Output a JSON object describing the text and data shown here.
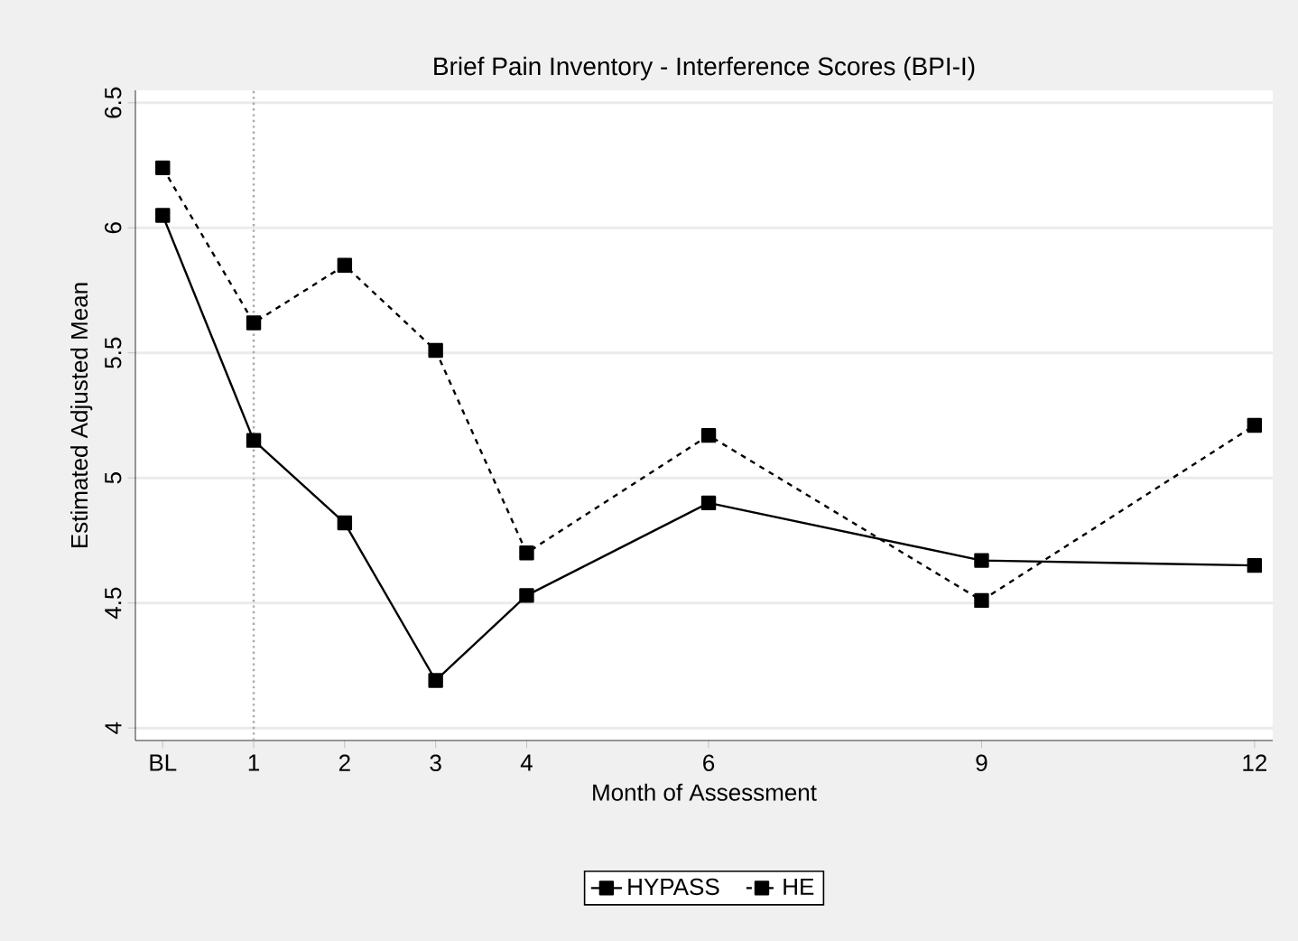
{
  "chart_data": {
    "type": "line",
    "title": "Brief Pain Inventory - Interference Scores (BPI-I)",
    "xlabel": "Month of Assessment",
    "ylabel": "Estimated Adjusted Mean",
    "x": [
      0,
      1,
      2,
      3,
      4,
      6,
      9,
      12
    ],
    "series": [
      {
        "name": "HYPASS",
        "color": "#000000",
        "line_style": "solid",
        "values": [
          6.05,
          5.15,
          4.82,
          4.19,
          4.53,
          4.9,
          4.67,
          4.65
        ]
      },
      {
        "name": "HE",
        "color": "#000000",
        "line_style": "dashed",
        "values": [
          6.24,
          5.62,
          5.85,
          5.51,
          4.7,
          5.17,
          4.51,
          5.21
        ]
      }
    ],
    "xlim": [
      -0.3,
      12.2
    ],
    "ylim": [
      3.95,
      6.55
    ],
    "xticks": [
      {
        "value": 0,
        "label": "BL"
      },
      1,
      2,
      3,
      4,
      6,
      9,
      12
    ],
    "yticks": [
      4,
      4.5,
      5,
      5.5,
      6,
      6.5
    ],
    "ref_lines": [
      {
        "axis": "x",
        "value": 1,
        "color": "#aaaaaa",
        "line_style": "dotted"
      }
    ],
    "grid": "y",
    "marker": "square",
    "legend": "bottom"
  }
}
